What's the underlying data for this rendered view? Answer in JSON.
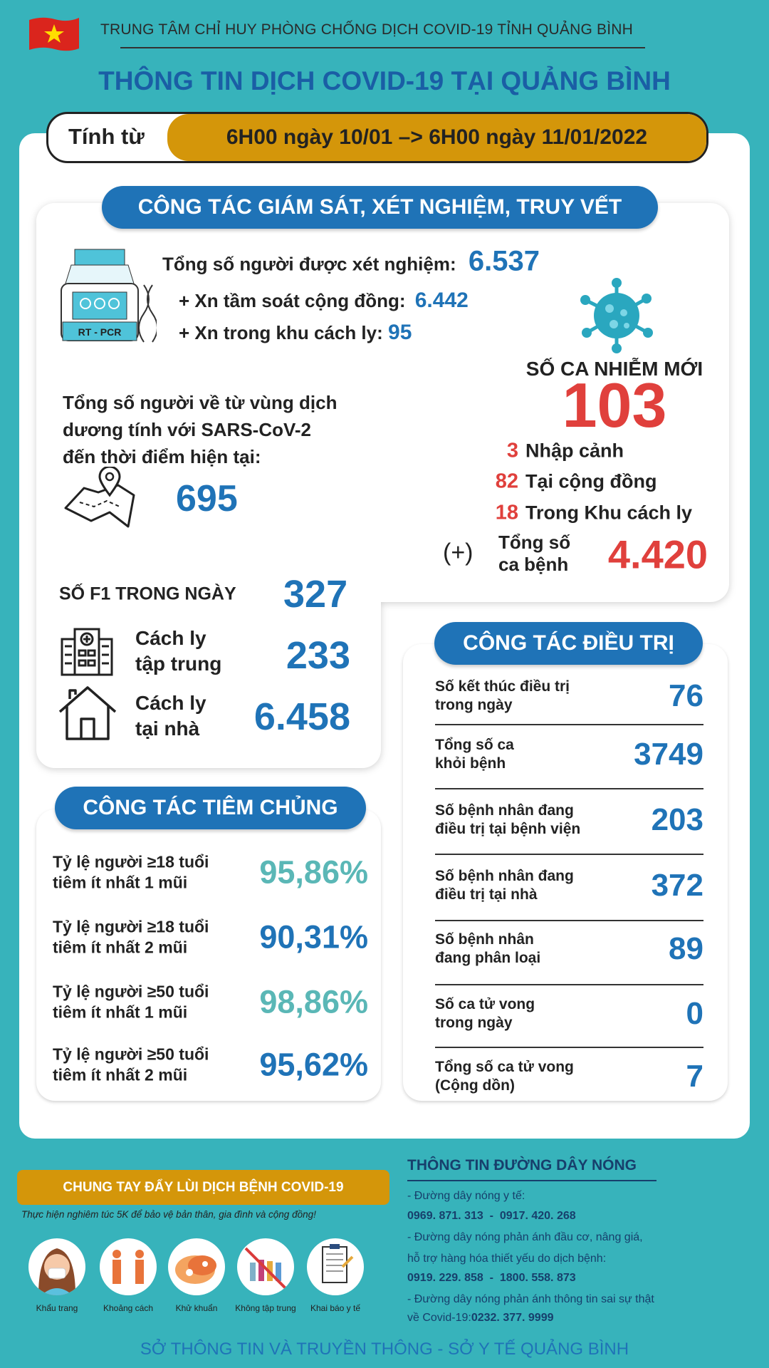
{
  "header": {
    "org": "TRUNG TÂM CHỈ HUY PHÒNG CHỐNG DỊCH COVID-19 TỈNH QUẢNG BÌNH",
    "title": "THÔNG TIN DỊCH COVID-19 TẠI QUẢNG BÌNH",
    "period_label": "Tính từ",
    "period_value": "6H00 ngày 10/01 –> 6H00 ngày 11/01/2022"
  },
  "surveillance": {
    "heading": "CÔNG TÁC GIÁM SÁT, XÉT NGHIỆM, TRUY VẾT",
    "icon_label": "RT - PCR",
    "tested_label": "Tổng số người được xét nghiệm:",
    "tested_value": "6.537",
    "community_label": "+ Xn tầm soát cộng đồng:",
    "community_value": "6.442",
    "quarantine_label": "+ Xn trong khu cách ly:",
    "quarantine_value": "95",
    "returnees_lines": [
      "Tổng số người về từ vùng dịch",
      "dương tính với SARS-CoV-2",
      "đến thời điểm hiện tại:"
    ],
    "returnees_value": "695",
    "new_cases_label": "SỐ CA NHIỄM MỚI",
    "new_cases_value": "103",
    "breakdown": [
      {
        "value": "3",
        "label": "Nhập cảnh"
      },
      {
        "value": "82",
        "label": "Tại cộng đồng"
      },
      {
        "value": "18",
        "label": "Trong Khu cách ly"
      }
    ],
    "total_prefix": "(+)",
    "total_label_1": "Tổng số",
    "total_label_2": "ca bệnh",
    "total_value": "4.420",
    "f1_label": "SỐ F1 TRONG NGÀY",
    "f1_value": "327",
    "central_label_1": "Cách ly",
    "central_label_2": "tập trung",
    "central_value": "233",
    "home_label_1": "Cách ly",
    "home_label_2": "tại nhà",
    "home_value": "6.458"
  },
  "vaccination": {
    "heading": "CÔNG TÁC TIÊM CHỦNG",
    "rows": [
      {
        "line1": "Tỷ lệ người ≥18 tuổi",
        "line2": "tiêm ít nhất 1 mũi",
        "value": "95,86%"
      },
      {
        "line1": "Tỷ lệ người ≥18 tuổi",
        "line2": "tiêm ít nhất 2 mũi",
        "value": "90,31%"
      },
      {
        "line1": "Tỷ lệ người ≥50 tuổi",
        "line2": "tiêm ít nhất 1 mũi",
        "value": "98,86%"
      },
      {
        "line1": "Tỷ lệ người ≥50 tuổi",
        "line2": "tiêm ít nhất 2 mũi",
        "value": "95,62%"
      }
    ]
  },
  "treatment": {
    "heading": "CÔNG TÁC ĐIỀU TRỊ",
    "rows": [
      {
        "line1": "Số kết thúc điều trị",
        "line2": "trong ngày",
        "value": "76"
      },
      {
        "line1": "Tổng số ca",
        "line2": "khỏi bệnh",
        "value": "3749"
      },
      {
        "line1": "Số bệnh nhân đang",
        "line2": "điều trị tại bệnh viện",
        "value": "203"
      },
      {
        "line1": "Số bệnh nhân đang",
        "line2": "điều trị tại nhà",
        "value": "372"
      },
      {
        "line1": "Số bệnh nhân",
        "line2": "đang phân loại",
        "value": "89"
      },
      {
        "line1": "Số ca tử vong",
        "line2": "trong ngày",
        "value": "0"
      },
      {
        "line1": "Tổng số ca tử vong",
        "line2": "(Cộng dồn)",
        "value": "7"
      }
    ]
  },
  "campaign": {
    "banner": "CHUNG TAY ĐẨY LÙI DỊCH BỆNH COVID-19",
    "subtitle": "Thực hiện nghiêm túc 5K để bảo vệ bản thân, gia đình và cộng đồng!",
    "items": [
      "Khẩu trang",
      "Khoảng cách",
      "Khử khuẩn",
      "Không tập trung",
      "Khai báo y tế"
    ]
  },
  "hotline": {
    "title": "THÔNG TIN ĐƯỜNG DÂY NÓNG",
    "lines": [
      "- Đường dây nóng y tế:",
      "0969. 871. 313  -  0917. 420. 268",
      "- Đường dây nóng phản ánh đầu cơ, nâng giá,",
      "hỗ trợ hàng hóa thiết yếu do dịch bệnh:",
      "0919. 229. 858  -  1800. 558. 873",
      "- Đường dây nóng phản ánh thông tin sai sự thật"
    ],
    "last_prefix": "về Covid-19:",
    "last_number": "0232. 377. 9999"
  },
  "footer": "SỞ THÔNG TIN VÀ TRUYỀN THÔNG - SỞ Y TẾ QUẢNG BÌNH",
  "colors": {
    "background": "#37b3bb",
    "blue": "#1f73b7",
    "red": "#e0403c",
    "gold": "#d4960a",
    "teal": "#5ab7b6"
  }
}
